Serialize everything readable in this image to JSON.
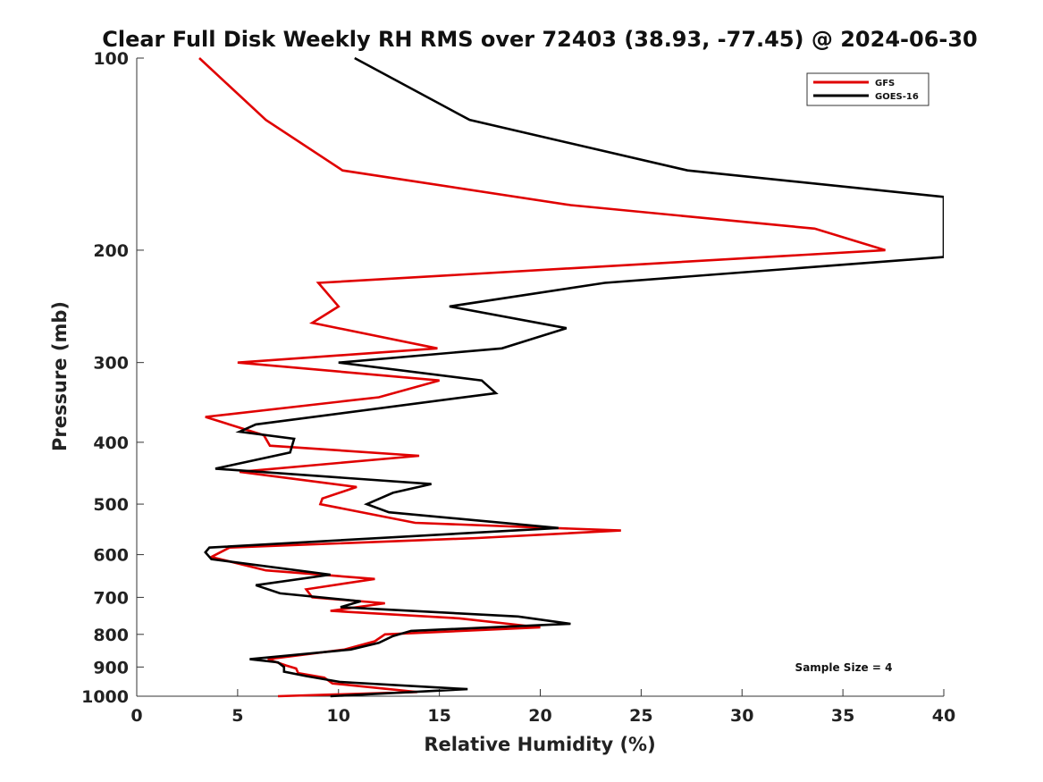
{
  "chart_data": {
    "type": "line",
    "title": "Clear Full Disk Weekly RH RMS over 72403 (38.93, -77.45) @ 2024-06-30",
    "xlabel": "Relative Humidity (%)",
    "ylabel": "Pressure (mb)",
    "xlim": [
      0,
      40
    ],
    "ylim": [
      1000,
      100
    ],
    "yscale": "log",
    "y_reversed": true,
    "x_ticks": [
      0,
      5,
      10,
      15,
      20,
      25,
      30,
      35,
      40
    ],
    "y_ticks": [
      100,
      200,
      300,
      400,
      500,
      600,
      700,
      800,
      900,
      1000
    ],
    "grid": false,
    "legend_position": "top-right",
    "annotation": "Sample Size = 4",
    "series": [
      {
        "name": "GFS",
        "color": "#e00000",
        "points": [
          [
            3.1,
            100
          ],
          [
            6.4,
            125
          ],
          [
            10.2,
            150
          ],
          [
            21.5,
            170
          ],
          [
            33.6,
            185
          ],
          [
            37.1,
            200
          ],
          [
            9.0,
            225
          ],
          [
            10.0,
            245
          ],
          [
            8.7,
            260
          ],
          [
            14.9,
            285
          ],
          [
            5.0,
            300
          ],
          [
            15.0,
            320
          ],
          [
            12.0,
            340
          ],
          [
            3.4,
            365
          ],
          [
            6.3,
            390
          ],
          [
            6.6,
            405
          ],
          [
            14.0,
            420
          ],
          [
            5.1,
            445
          ],
          [
            10.9,
            470
          ],
          [
            9.2,
            490
          ],
          [
            9.1,
            500
          ],
          [
            13.8,
            535
          ],
          [
            24.0,
            550
          ],
          [
            16.9,
            565
          ],
          [
            4.6,
            585
          ],
          [
            3.7,
            605
          ],
          [
            6.4,
            635
          ],
          [
            11.8,
            655
          ],
          [
            8.4,
            680
          ],
          [
            8.7,
            700
          ],
          [
            12.3,
            715
          ],
          [
            9.6,
            735
          ],
          [
            16.0,
            755
          ],
          [
            20.0,
            780
          ],
          [
            12.3,
            800
          ],
          [
            11.8,
            820
          ],
          [
            10.3,
            845
          ],
          [
            6.5,
            875
          ],
          [
            7.4,
            895
          ],
          [
            7.9,
            905
          ],
          [
            8.0,
            920
          ],
          [
            9.3,
            935
          ],
          [
            9.7,
            955
          ],
          [
            13.9,
            985
          ],
          [
            7.0,
            1000
          ]
        ]
      },
      {
        "name": "GOES-16",
        "color": "#000000",
        "points": [
          [
            10.8,
            100
          ],
          [
            16.5,
            125
          ],
          [
            27.3,
            150
          ],
          [
            40.0,
            165
          ],
          [
            40.0,
            205
          ],
          [
            23.2,
            225
          ],
          [
            15.5,
            245
          ],
          [
            21.3,
            265
          ],
          [
            18.1,
            285
          ],
          [
            10.0,
            300
          ],
          [
            17.1,
            320
          ],
          [
            17.8,
            335
          ],
          [
            5.9,
            375
          ],
          [
            5.1,
            385
          ],
          [
            7.8,
            395
          ],
          [
            7.6,
            415
          ],
          [
            3.9,
            440
          ],
          [
            14.6,
            465
          ],
          [
            12.7,
            480
          ],
          [
            11.4,
            500
          ],
          [
            12.5,
            515
          ],
          [
            20.9,
            545
          ],
          [
            3.6,
            585
          ],
          [
            3.4,
            595
          ],
          [
            3.7,
            610
          ],
          [
            9.6,
            645
          ],
          [
            5.9,
            670
          ],
          [
            7.1,
            690
          ],
          [
            11.1,
            710
          ],
          [
            10.1,
            725
          ],
          [
            18.9,
            750
          ],
          [
            21.5,
            770
          ],
          [
            13.6,
            790
          ],
          [
            12.7,
            805
          ],
          [
            12.0,
            825
          ],
          [
            10.6,
            845
          ],
          [
            5.6,
            875
          ],
          [
            7.0,
            885
          ],
          [
            7.3,
            900
          ],
          [
            7.3,
            915
          ],
          [
            8.4,
            930
          ],
          [
            10.1,
            950
          ],
          [
            16.4,
            975
          ],
          [
            9.6,
            1000
          ]
        ]
      }
    ]
  }
}
